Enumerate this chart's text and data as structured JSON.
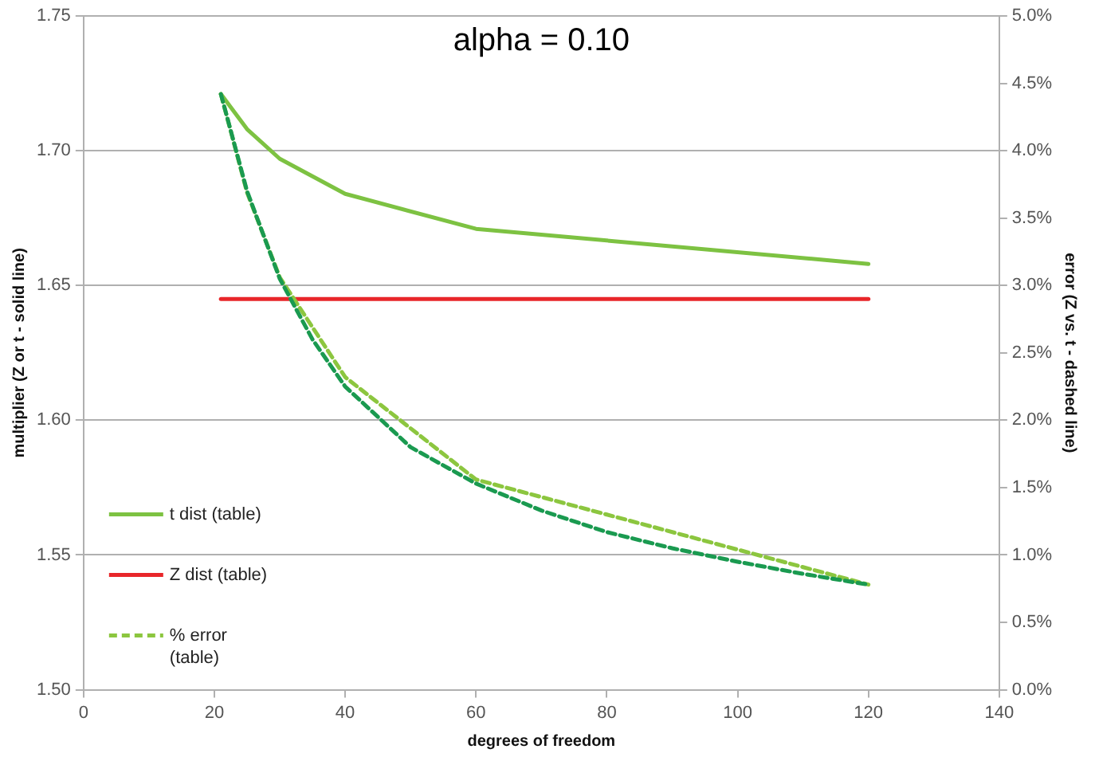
{
  "chart_data": {
    "type": "line",
    "title": "alpha = 0.10",
    "xlabel": "degrees of freedom",
    "ylabel": "multiplier (Z or t - solid line)",
    "y2label": "error (Z vs. t - dashed line)",
    "xlim": [
      0,
      140
    ],
    "xticks": [
      0,
      20,
      40,
      60,
      80,
      100,
      120,
      140
    ],
    "ylim": [
      1.5,
      1.75
    ],
    "yticks": [
      {
        "value": 1.5,
        "label": "1.50"
      },
      {
        "value": 1.55,
        "label": "1.55"
      },
      {
        "value": 1.6,
        "label": "1.60"
      },
      {
        "value": 1.65,
        "label": "1.65"
      },
      {
        "value": 1.7,
        "label": "1.70"
      },
      {
        "value": 1.75,
        "label": "1.75"
      }
    ],
    "y2lim": [
      0,
      5
    ],
    "y2ticks": [
      {
        "value": 0,
        "label": "0.0%"
      },
      {
        "value": 0.5,
        "label": "0.5%"
      },
      {
        "value": 1,
        "label": "1.0%"
      },
      {
        "value": 1.5,
        "label": "1.5%"
      },
      {
        "value": 2,
        "label": "2.0%"
      },
      {
        "value": 2.5,
        "label": "2.5%"
      },
      {
        "value": 3,
        "label": "3.0%"
      },
      {
        "value": 3.5,
        "label": "3.5%"
      },
      {
        "value": 4,
        "label": "4.0%"
      },
      {
        "value": 4.5,
        "label": "4.5%"
      },
      {
        "value": 5,
        "label": "5.0%"
      }
    ],
    "grid": "y",
    "legend": "bottom left",
    "marker": "none",
    "series": [
      {
        "name": "t dist (table)",
        "color": "#7dc242",
        "line_style": "solid",
        "x": [
          21,
          25,
          30,
          40,
          60,
          120
        ],
        "values": [
          1.721,
          1.708,
          1.697,
          1.684,
          1.671,
          1.658
        ]
      },
      {
        "name": "Z dist (table)",
        "color": "#e8262a",
        "line_style": "solid",
        "x": [
          21,
          120
        ],
        "values": [
          1.645,
          1.645
        ]
      },
      {
        "name": "% error (table)",
        "color": "#8cc63f",
        "line_style": "dashed",
        "axis": "y2",
        "x": [
          21,
          25,
          30,
          40,
          60,
          120
        ],
        "values": [
          4.42,
          3.69,
          3.06,
          2.32,
          1.56,
          0.78
        ]
      },
      {
        "color": "#1a9a50",
        "line_style": "dashed",
        "axis": "y2",
        "x": [
          21,
          25,
          30,
          35,
          40,
          50,
          60,
          70,
          80,
          90,
          100,
          110,
          120
        ],
        "values": [
          4.42,
          3.7,
          3.05,
          2.6,
          2.25,
          1.8,
          1.53,
          1.33,
          1.17,
          1.05,
          0.95,
          0.86,
          0.78
        ]
      }
    ]
  }
}
